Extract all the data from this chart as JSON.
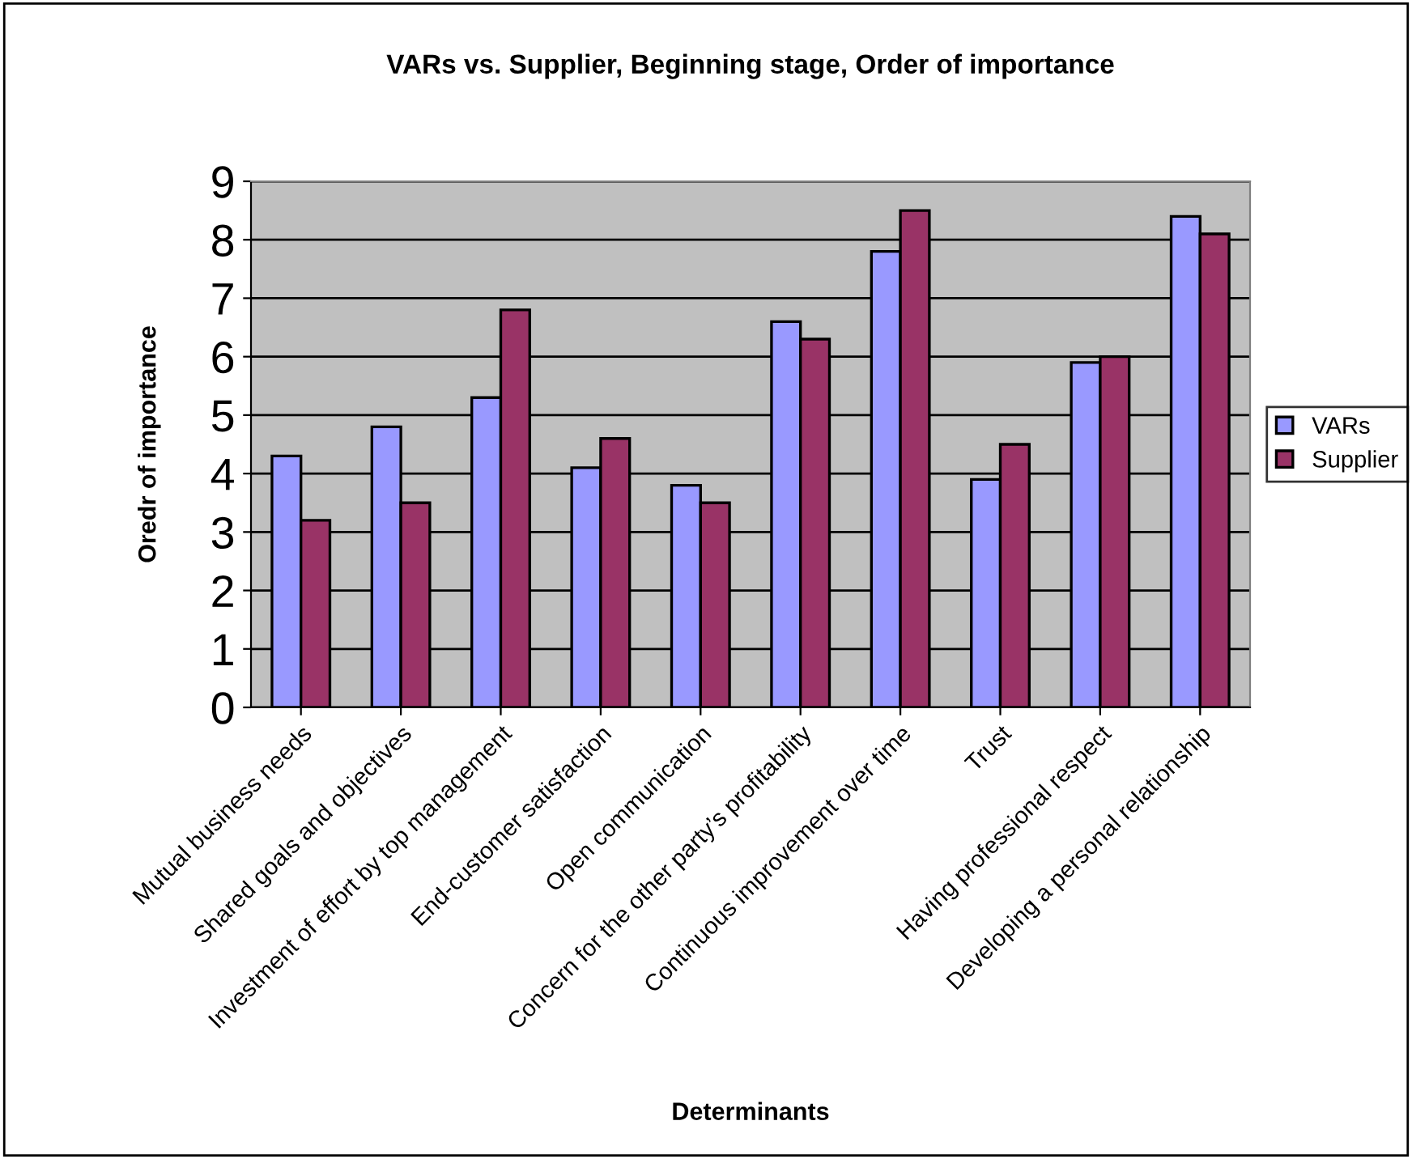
{
  "chart_data": {
    "type": "bar",
    "title": "VARs vs. Supplier, Beginning stage, Order of importance",
    "xlabel": "Determinants",
    "ylabel": "Oredr of importance",
    "categories": [
      "Mutual business needs",
      "Shared goals and objectives",
      "Investment of effort by top management",
      "End-customer satisfaction",
      "Open communication",
      "Concern for the other party’s profitability",
      "Continuous improvement over time",
      "Trust",
      "Having professional respect",
      "Developing a personal relationship"
    ],
    "series": [
      {
        "name": "VARs",
        "color": "#9999ff",
        "values": [
          4.3,
          4.8,
          5.3,
          4.1,
          3.8,
          6.6,
          7.8,
          3.9,
          5.9,
          8.4
        ]
      },
      {
        "name": "Supplier",
        "color": "#993366",
        "values": [
          3.2,
          3.5,
          6.8,
          4.6,
          3.5,
          6.3,
          8.5,
          4.5,
          6.0,
          8.1
        ]
      }
    ],
    "ylim": [
      0,
      9
    ],
    "yticks": [
      0,
      1,
      2,
      3,
      4,
      5,
      6,
      7,
      8,
      9
    ],
    "grid": "y",
    "legend": "right"
  }
}
